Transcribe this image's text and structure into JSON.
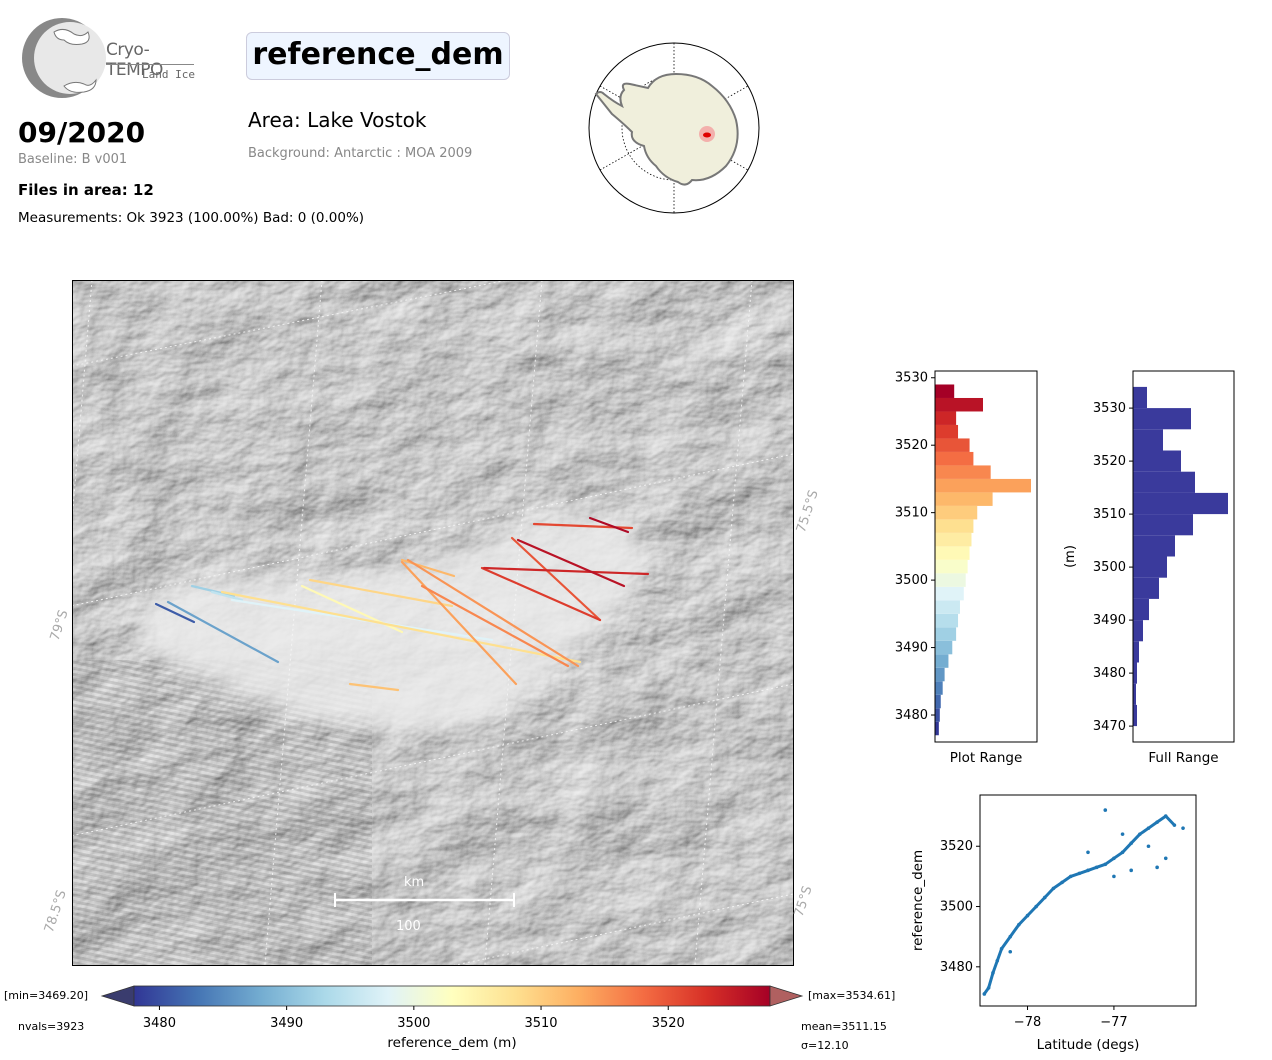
{
  "header": {
    "logo_line1": "Cryo-TEMPO",
    "logo_line2": "Land Ice",
    "date": "09/2020",
    "baseline": "Baseline: B v001",
    "files": "Files in area: 12",
    "measurements": "Measurements: Ok 3923 (100.00%) Bad: 0 (0.00%)",
    "variable": "reference_dem",
    "area": "Area: Lake Vostok",
    "background": "Background: Antarctic : MOA 2009"
  },
  "map": {
    "lat_labels": [
      "79°S",
      "78.5°S"
    ],
    "lon_labels": [
      "75.5°S",
      "75°S"
    ],
    "scalebar_unit": "km",
    "scalebar_value": "100"
  },
  "colorbar": {
    "label": "reference_dem (m)",
    "ticks": [
      "3480",
      "3490",
      "3500",
      "3510",
      "3520"
    ],
    "min_label": "[min=3469.20]",
    "max_label": "[max=3534.61]",
    "nvals": "nvals=3923",
    "mean": "mean=3511.15",
    "sigma": "σ=12.10",
    "range": [
      3478,
      3528
    ]
  },
  "colors": {
    "track_low": "#313695",
    "track_mid": "#ffffbf",
    "track_high": "#a50026",
    "hist_full": "#3a3a9c"
  },
  "chart_data": [
    {
      "type": "bar",
      "title": "",
      "xlabel": "Plot Range",
      "orientation": "horizontal",
      "yticks": [
        "3480",
        "3490",
        "3500",
        "3510",
        "3520",
        "3530"
      ],
      "ylim": [
        3476,
        3531
      ],
      "bin_centers": [
        3478,
        3480,
        3482,
        3484,
        3486,
        3488,
        3490,
        3492,
        3494,
        3496,
        3498,
        3500,
        3502,
        3504,
        3506,
        3508,
        3510,
        3512,
        3514,
        3516,
        3518,
        3520,
        3522,
        3524,
        3526,
        3528
      ],
      "counts": [
        4,
        5,
        6,
        8,
        10,
        14,
        18,
        22,
        24,
        26,
        30,
        32,
        34,
        36,
        38,
        40,
        44,
        60,
        100,
        58,
        40,
        36,
        24,
        22,
        50,
        20
      ]
    },
    {
      "type": "bar",
      "title": "",
      "xlabel": "Full Range",
      "ylabel": "(m)",
      "orientation": "horizontal",
      "yticks": [
        "3470",
        "3480",
        "3490",
        "3500",
        "3510",
        "3520",
        "3530"
      ],
      "ylim": [
        3467,
        3537
      ],
      "bin_centers": [
        3472,
        3476,
        3480,
        3484,
        3488,
        3492,
        3496,
        3500,
        3504,
        3508,
        3512,
        3516,
        3520,
        3524,
        3528,
        3532
      ],
      "counts": [
        4,
        3,
        4,
        6,
        10,
        16,
        26,
        34,
        42,
        60,
        95,
        62,
        48,
        30,
        58,
        14
      ]
    },
    {
      "type": "scatter",
      "title": "",
      "xlabel": "Latitude (degs)",
      "ylabel": "reference_dem",
      "xticks": [
        "−78",
        "−77"
      ],
      "yticks": [
        "3480",
        "3500",
        "3520"
      ],
      "xlim": [
        -78.55,
        -76.05
      ],
      "ylim": [
        3467,
        3537
      ],
      "points": [
        [
          -78.5,
          3471
        ],
        [
          -78.45,
          3473
        ],
        [
          -78.4,
          3478
        ],
        [
          -78.35,
          3482
        ],
        [
          -78.3,
          3486
        ],
        [
          -78.2,
          3490
        ],
        [
          -78.1,
          3494
        ],
        [
          -78.0,
          3497
        ],
        [
          -77.9,
          3500
        ],
        [
          -77.8,
          3503
        ],
        [
          -77.7,
          3506
        ],
        [
          -77.6,
          3508
        ],
        [
          -77.5,
          3510
        ],
        [
          -77.4,
          3511
        ],
        [
          -77.3,
          3512
        ],
        [
          -77.2,
          3513
        ],
        [
          -77.1,
          3514
        ],
        [
          -77.0,
          3516
        ],
        [
          -76.9,
          3518
        ],
        [
          -76.8,
          3521
        ],
        [
          -76.7,
          3524
        ],
        [
          -76.6,
          3526
        ],
        [
          -76.5,
          3528
        ],
        [
          -76.4,
          3530
        ],
        [
          -76.3,
          3527
        ],
        [
          -77.3,
          3518
        ],
        [
          -77.1,
          3532
        ],
        [
          -76.9,
          3524
        ],
        [
          -76.6,
          3520
        ],
        [
          -76.4,
          3516
        ],
        [
          -76.2,
          3526
        ],
        [
          -76.8,
          3512
        ],
        [
          -77.0,
          3510
        ],
        [
          -76.5,
          3513
        ],
        [
          -78.2,
          3485
        ]
      ]
    }
  ]
}
